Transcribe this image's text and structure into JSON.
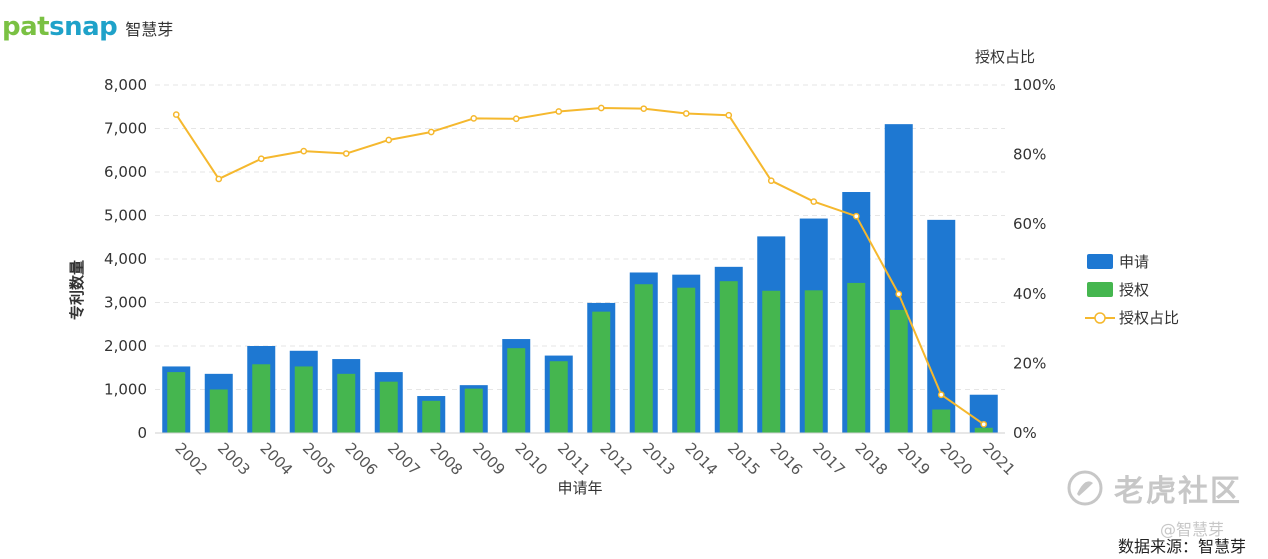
{
  "brand": {
    "part1": "pat",
    "part2": "snap",
    "cn": "智慧芽"
  },
  "watermark": {
    "main": "老虎社区",
    "sub": "@智慧芽"
  },
  "source": "数据来源：智慧芽",
  "chart_data": {
    "type": "bar",
    "combo": "bar+line",
    "categories": [
      "2002",
      "2003",
      "2004",
      "2005",
      "2006",
      "2007",
      "2008",
      "2009",
      "2010",
      "2011",
      "2012",
      "2013",
      "2014",
      "2015",
      "2016",
      "2017",
      "2018",
      "2019",
      "2020",
      "2021"
    ],
    "series": [
      {
        "name": "申请",
        "type": "bar",
        "axis": "left",
        "color": "#1e78d2",
        "values": [
          1530,
          1360,
          2000,
          1890,
          1700,
          1400,
          850,
          1100,
          2160,
          1780,
          2990,
          3690,
          3640,
          3820,
          4520,
          4930,
          5540,
          7100,
          4900,
          880
        ]
      },
      {
        "name": "授权",
        "type": "bar",
        "axis": "left",
        "color": "#45b64f",
        "values": [
          1400,
          1000,
          1580,
          1530,
          1360,
          1180,
          740,
          1020,
          1950,
          1650,
          2790,
          3420,
          3340,
          3490,
          3270,
          3280,
          3450,
          2830,
          540,
          120
        ]
      },
      {
        "name": "授权占比",
        "type": "line",
        "axis": "right",
        "color": "#f5b82e",
        "unit": "%",
        "values": [
          91.5,
          73,
          78.8,
          81,
          80.3,
          84.2,
          86.5,
          90.4,
          90.3,
          92.4,
          93.4,
          93.2,
          91.8,
          91.3,
          72.5,
          66.5,
          62.3,
          39.9,
          11,
          2.5
        ]
      }
    ],
    "xlabel": "申请年",
    "ylabel": "专利数量",
    "y2label": "授权占比",
    "ylim": [
      0,
      8000
    ],
    "yticks": [
      "0",
      "1,000",
      "2,000",
      "3,000",
      "4,000",
      "5,000",
      "6,000",
      "7,000",
      "8,000"
    ],
    "y2lim": [
      0,
      100
    ],
    "y2ticks": [
      "0%",
      "20%",
      "40%",
      "60%",
      "80%",
      "100%"
    ],
    "grid": true,
    "legend_position": "right"
  }
}
